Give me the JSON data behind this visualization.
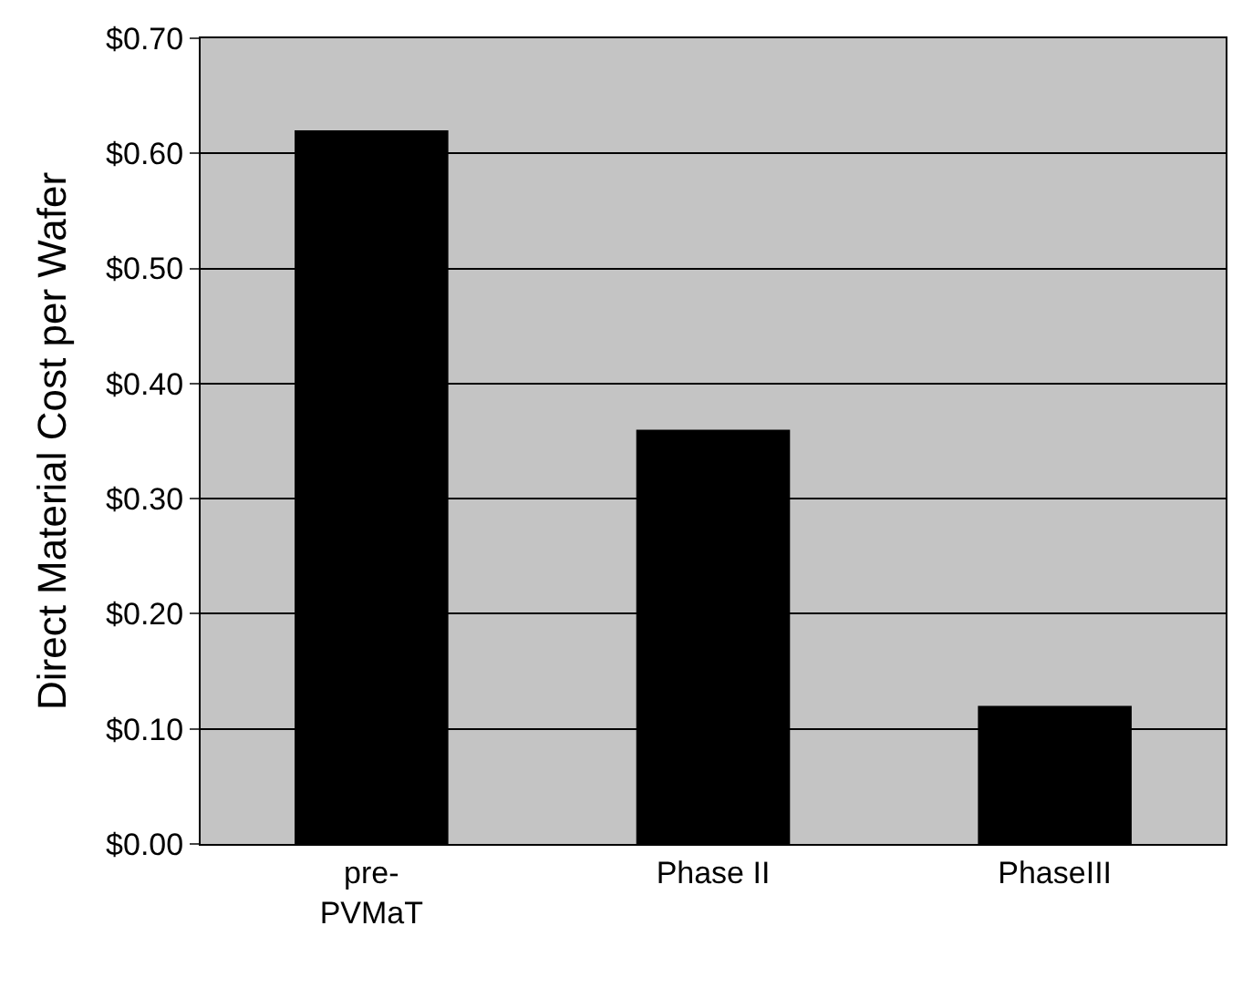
{
  "chart_data": {
    "type": "bar",
    "ylabel": "Direct Material Cost per Wafer",
    "categories": [
      "pre-\nPVMaT",
      "Phase II",
      "PhaseIII"
    ],
    "values": [
      0.62,
      0.36,
      0.12
    ],
    "color": "#000000",
    "ylim": [
      0,
      0.7
    ],
    "yticks": [
      {
        "value": 0,
        "label": "$0.00"
      },
      {
        "value": 0.1,
        "label": "$0.10"
      },
      {
        "value": 0.2,
        "label": "$0.20"
      },
      {
        "value": 0.3,
        "label": "$0.30"
      },
      {
        "value": 0.4,
        "label": "$0.40"
      },
      {
        "value": 0.5,
        "label": "$0.50"
      },
      {
        "value": 0.6,
        "label": "$0.60"
      },
      {
        "value": 0.7,
        "label": "$0.70"
      }
    ],
    "grid": "y"
  }
}
